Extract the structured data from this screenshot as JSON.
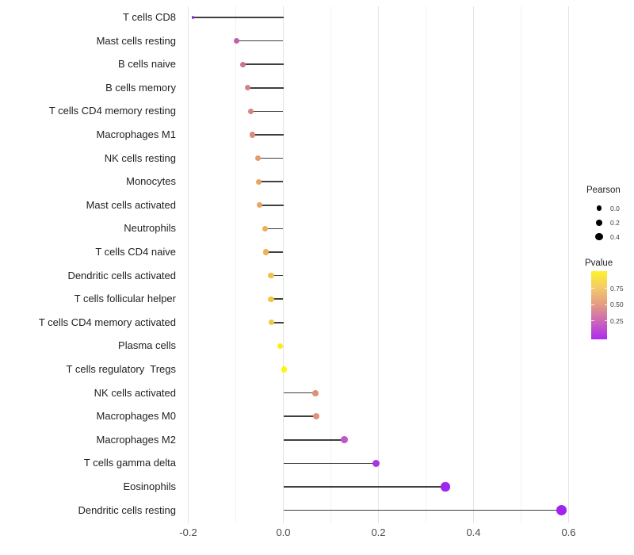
{
  "chart_data": {
    "type": "lollipop",
    "title": "",
    "xlabel": "",
    "ylabel": "",
    "grid": "vertical-only",
    "legend_position": "right",
    "x_major_ticks": [
      -0.2,
      0.0,
      0.2,
      0.4,
      0.6
    ],
    "x_tick_labels": [
      "-0.2",
      "0.0",
      "0.2",
      "0.4",
      "0.6"
    ],
    "x_minor_ticks": [
      -0.1,
      0.1,
      0.3,
      0.5
    ],
    "xlim": [
      -0.2625,
      0.6175
    ],
    "baseline_x": 0.0,
    "points": [
      {
        "label": "T cells CD8",
        "pearson": -0.19,
        "pvalue_est": 0.05,
        "dot_color": "#9C2BDE",
        "dot_diameter": 3.6
      },
      {
        "label": "Mast cells resting",
        "pearson": -0.098,
        "pvalue_est": 0.3,
        "dot_color": "#C25FAE",
        "dot_diameter": 7.0
      },
      {
        "label": "B cells naive",
        "pearson": -0.085,
        "pvalue_est": 0.4,
        "dot_color": "#CE7295",
        "dot_diameter": 7.0
      },
      {
        "label": "B cells memory",
        "pearson": -0.075,
        "pvalue_est": 0.47,
        "dot_color": "#D58189",
        "dot_diameter": 7.0
      },
      {
        "label": "T cells CD4 memory resting",
        "pearson": -0.069,
        "pvalue_est": 0.48,
        "dot_color": "#D78580",
        "dot_diameter": 7.0
      },
      {
        "label": "Macrophages M1",
        "pearson": -0.065,
        "pvalue_est": 0.52,
        "dot_color": "#DA8A7B",
        "dot_diameter": 7.1
      },
      {
        "label": "NK cells resting",
        "pearson": -0.054,
        "pvalue_est": 0.6,
        "dot_color": "#E39C6B",
        "dot_diameter": 7.2
      },
      {
        "label": "Monocytes",
        "pearson": -0.051,
        "pvalue_est": 0.64,
        "dot_color": "#E7A463",
        "dot_diameter": 7.2
      },
      {
        "label": "Mast cells activated",
        "pearson": -0.05,
        "pvalue_est": 0.64,
        "dot_color": "#E7A562",
        "dot_diameter": 7.2
      },
      {
        "label": "Neutrophils",
        "pearson": -0.038,
        "pvalue_est": 0.71,
        "dot_color": "#ECB156",
        "dot_diameter": 7.3
      },
      {
        "label": "T cells CD4 naive",
        "pearson": -0.037,
        "pvalue_est": 0.71,
        "dot_color": "#ECB254",
        "dot_diameter": 7.3
      },
      {
        "label": "Dendritic cells activated",
        "pearson": -0.026,
        "pvalue_est": 0.78,
        "dot_color": "#F0C14B",
        "dot_diameter": 7.4
      },
      {
        "label": "T cells follicular helper",
        "pearson": -0.026,
        "pvalue_est": 0.8,
        "dot_color": "#F1C548",
        "dot_diameter": 7.4
      },
      {
        "label": "T cells CD4 memory activated",
        "pearson": -0.025,
        "pvalue_est": 0.8,
        "dot_color": "#F1C746",
        "dot_diameter": 7.4
      },
      {
        "label": "Plasma cells",
        "pearson": -0.007,
        "pvalue_est": 0.94,
        "dot_color": "#FBED19",
        "dot_diameter": 7.5
      },
      {
        "label": "T cells regulatory  Tregs",
        "pearson": 0.002,
        "pvalue_est": 0.97,
        "dot_color": "#FDF50D",
        "dot_diameter": 7.5
      },
      {
        "label": "NK cells activated",
        "pearson": 0.067,
        "pvalue_est": 0.55,
        "dot_color": "#DD9178",
        "dot_diameter": 8.0
      },
      {
        "label": "Macrophages M0",
        "pearson": 0.069,
        "pvalue_est": 0.56,
        "dot_color": "#DE9376",
        "dot_diameter": 8.0
      },
      {
        "label": "Macrophages M2",
        "pearson": 0.128,
        "pvalue_est": 0.25,
        "dot_color": "#C355C8",
        "dot_diameter": 8.8
      },
      {
        "label": "T cells gamma delta",
        "pearson": 0.195,
        "pvalue_est": 0.1,
        "dot_color": "#A834E3",
        "dot_diameter": 9.4
      },
      {
        "label": "Eosinophils",
        "pearson": 0.341,
        "pvalue_est": 0.05,
        "dot_color": "#9D27EC",
        "dot_diameter": 11.3
      },
      {
        "label": "Dendritic cells resting",
        "pearson": 0.585,
        "pvalue_est": 0.02,
        "dot_color": "#A023F0",
        "dot_diameter": 13.4
      }
    ],
    "legend": {
      "size": {
        "title": "Pearson",
        "dot_color": "#000000",
        "items": [
          {
            "label": "0.0",
            "diameter": 6.7
          },
          {
            "label": "0.2",
            "diameter": 8.2
          },
          {
            "label": "0.4",
            "diameter": 9.6
          }
        ]
      },
      "color": {
        "title": "Pvalue",
        "tick_labels": [
          "0.75",
          "0.50",
          "0.25"
        ],
        "range": [
          0,
          1
        ],
        "gradient_top_to_bottom": [
          "#FCF22B",
          "#F3C96D",
          "#E29A82",
          "#CB63BB",
          "#AC2BEF"
        ]
      }
    },
    "stick_color": "#3f3f3f"
  }
}
